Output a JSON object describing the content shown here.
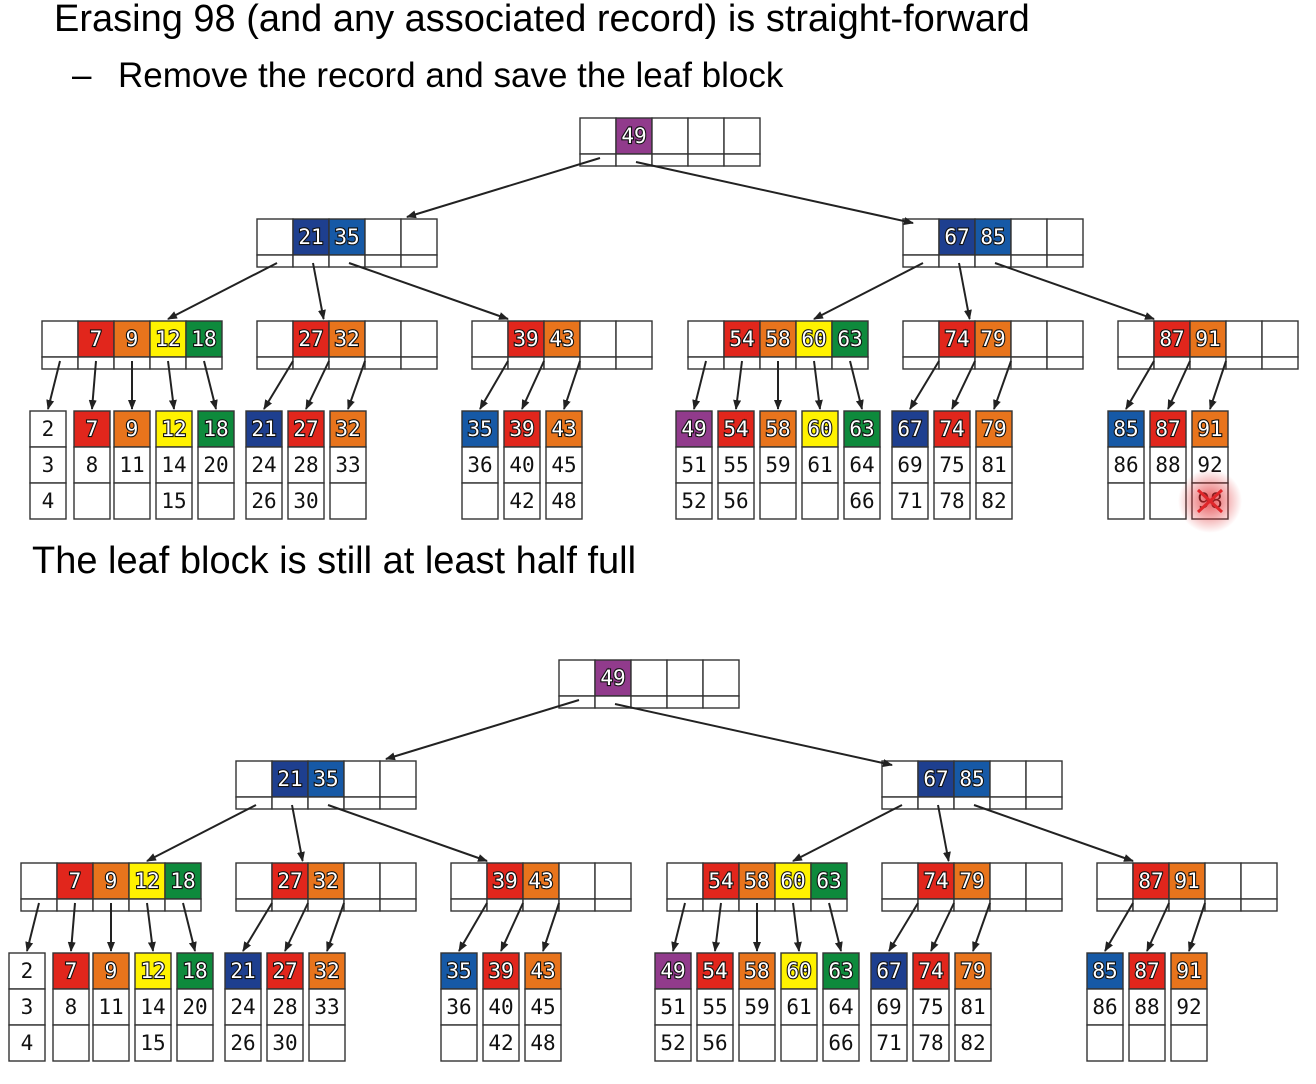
{
  "title": "Erasing 98 (and any associated record) is straight-forward",
  "bullet": {
    "dash": "–",
    "text": "Remove the record and save the leaf block"
  },
  "caption": "The leaf block is still at least half full",
  "colors": {
    "purple": "#913b8c",
    "navy": "#1e3f8f",
    "blue": "#1659a6",
    "red": "#e1261c",
    "orange": "#e8741c",
    "yellow": "#fff200",
    "green": "#0e8a3c",
    "highlight": "#e0262a"
  },
  "before": {
    "root": [
      {
        "k": "49",
        "c": "purple"
      }
    ],
    "internal": [
      [
        {
          "k": "21",
          "c": "navy"
        },
        {
          "k": "35",
          "c": "blue"
        }
      ],
      [
        {
          "k": "67",
          "c": "navy"
        },
        {
          "k": "85",
          "c": "blue"
        }
      ]
    ],
    "inner_blocks": [
      [
        {
          "k": "7",
          "c": "red"
        },
        {
          "k": "9",
          "c": "orange"
        },
        {
          "k": "12",
          "c": "yellow"
        },
        {
          "k": "18",
          "c": "green"
        }
      ],
      [
        {
          "k": "27",
          "c": "red"
        },
        {
          "k": "32",
          "c": "orange"
        }
      ],
      [
        {
          "k": "39",
          "c": "red"
        },
        {
          "k": "43",
          "c": "orange"
        }
      ],
      [
        {
          "k": "54",
          "c": "red"
        },
        {
          "k": "58",
          "c": "orange"
        },
        {
          "k": "60",
          "c": "yellow"
        },
        {
          "k": "63",
          "c": "green"
        }
      ],
      [
        {
          "k": "74",
          "c": "red"
        },
        {
          "k": "79",
          "c": "orange"
        }
      ],
      [
        {
          "k": "87",
          "c": "red"
        },
        {
          "k": "91",
          "c": "orange"
        }
      ]
    ],
    "leaves": [
      [
        [
          {
            "k": "2"
          },
          {
            "k": "3"
          },
          {
            "k": "4"
          }
        ],
        [
          {
            "k": "7",
            "c": "red"
          },
          {
            "k": "8"
          },
          {
            "k": ""
          }
        ],
        [
          {
            "k": "9",
            "c": "orange"
          },
          {
            "k": "11"
          },
          {
            "k": ""
          }
        ],
        [
          {
            "k": "12",
            "c": "yellow"
          },
          {
            "k": "14"
          },
          {
            "k": "15"
          }
        ],
        [
          {
            "k": "18",
            "c": "green"
          },
          {
            "k": "20"
          },
          {
            "k": ""
          }
        ]
      ],
      [
        [
          {
            "k": "21",
            "c": "navy"
          },
          {
            "k": "24"
          },
          {
            "k": "26"
          }
        ],
        [
          {
            "k": "27",
            "c": "red"
          },
          {
            "k": "28"
          },
          {
            "k": "30"
          }
        ],
        [
          {
            "k": "32",
            "c": "orange"
          },
          {
            "k": "33"
          },
          {
            "k": ""
          }
        ]
      ],
      [
        [
          {
            "k": "35",
            "c": "blue"
          },
          {
            "k": "36"
          },
          {
            "k": ""
          }
        ],
        [
          {
            "k": "39",
            "c": "red"
          },
          {
            "k": "40"
          },
          {
            "k": "42"
          }
        ],
        [
          {
            "k": "43",
            "c": "orange"
          },
          {
            "k": "45"
          },
          {
            "k": "48"
          }
        ]
      ],
      [
        [
          {
            "k": "49",
            "c": "purple"
          },
          {
            "k": "51"
          },
          {
            "k": "52"
          }
        ],
        [
          {
            "k": "54",
            "c": "red"
          },
          {
            "k": "55"
          },
          {
            "k": "56"
          }
        ],
        [
          {
            "k": "58",
            "c": "orange"
          },
          {
            "k": "59"
          },
          {
            "k": ""
          }
        ],
        [
          {
            "k": "60",
            "c": "yellow"
          },
          {
            "k": "61"
          },
          {
            "k": ""
          }
        ],
        [
          {
            "k": "63",
            "c": "green"
          },
          {
            "k": "64"
          },
          {
            "k": "66"
          }
        ]
      ],
      [
        [
          {
            "k": "67",
            "c": "navy"
          },
          {
            "k": "69"
          },
          {
            "k": "71"
          }
        ],
        [
          {
            "k": "74",
            "c": "red"
          },
          {
            "k": "75"
          },
          {
            "k": "78"
          }
        ],
        [
          {
            "k": "79",
            "c": "orange"
          },
          {
            "k": "81"
          },
          {
            "k": "82"
          }
        ]
      ],
      [
        [
          {
            "k": "85",
            "c": "blue"
          },
          {
            "k": "86"
          },
          {
            "k": ""
          }
        ],
        [
          {
            "k": "87",
            "c": "red"
          },
          {
            "k": "88"
          },
          {
            "k": ""
          }
        ],
        [
          {
            "k": "91",
            "c": "orange"
          },
          {
            "k": "92"
          },
          {
            "k": "98",
            "erased": true
          }
        ]
      ]
    ]
  },
  "after": {
    "root": [
      {
        "k": "49",
        "c": "purple"
      }
    ],
    "internal": [
      [
        {
          "k": "21",
          "c": "navy"
        },
        {
          "k": "35",
          "c": "blue"
        }
      ],
      [
        {
          "k": "67",
          "c": "navy"
        },
        {
          "k": "85",
          "c": "blue"
        }
      ]
    ],
    "inner_blocks": [
      [
        {
          "k": "7",
          "c": "red"
        },
        {
          "k": "9",
          "c": "orange"
        },
        {
          "k": "12",
          "c": "yellow"
        },
        {
          "k": "18",
          "c": "green"
        }
      ],
      [
        {
          "k": "27",
          "c": "red"
        },
        {
          "k": "32",
          "c": "orange"
        }
      ],
      [
        {
          "k": "39",
          "c": "red"
        },
        {
          "k": "43",
          "c": "orange"
        }
      ],
      [
        {
          "k": "54",
          "c": "red"
        },
        {
          "k": "58",
          "c": "orange"
        },
        {
          "k": "60",
          "c": "yellow"
        },
        {
          "k": "63",
          "c": "green"
        }
      ],
      [
        {
          "k": "74",
          "c": "red"
        },
        {
          "k": "79",
          "c": "orange"
        }
      ],
      [
        {
          "k": "87",
          "c": "red"
        },
        {
          "k": "91",
          "c": "orange"
        }
      ]
    ],
    "leaves": [
      [
        [
          {
            "k": "2"
          },
          {
            "k": "3"
          },
          {
            "k": "4"
          }
        ],
        [
          {
            "k": "7",
            "c": "red"
          },
          {
            "k": "8"
          },
          {
            "k": ""
          }
        ],
        [
          {
            "k": "9",
            "c": "orange"
          },
          {
            "k": "11"
          },
          {
            "k": ""
          }
        ],
        [
          {
            "k": "12",
            "c": "yellow"
          },
          {
            "k": "14"
          },
          {
            "k": "15"
          }
        ],
        [
          {
            "k": "18",
            "c": "green"
          },
          {
            "k": "20"
          },
          {
            "k": ""
          }
        ]
      ],
      [
        [
          {
            "k": "21",
            "c": "navy"
          },
          {
            "k": "24"
          },
          {
            "k": "26"
          }
        ],
        [
          {
            "k": "27",
            "c": "red"
          },
          {
            "k": "28"
          },
          {
            "k": "30"
          }
        ],
        [
          {
            "k": "32",
            "c": "orange"
          },
          {
            "k": "33"
          },
          {
            "k": ""
          }
        ]
      ],
      [
        [
          {
            "k": "35",
            "c": "blue"
          },
          {
            "k": "36"
          },
          {
            "k": ""
          }
        ],
        [
          {
            "k": "39",
            "c": "red"
          },
          {
            "k": "40"
          },
          {
            "k": "42"
          }
        ],
        [
          {
            "k": "43",
            "c": "orange"
          },
          {
            "k": "45"
          },
          {
            "k": "48"
          }
        ]
      ],
      [
        [
          {
            "k": "49",
            "c": "purple"
          },
          {
            "k": "51"
          },
          {
            "k": "52"
          }
        ],
        [
          {
            "k": "54",
            "c": "red"
          },
          {
            "k": "55"
          },
          {
            "k": "56"
          }
        ],
        [
          {
            "k": "58",
            "c": "orange"
          },
          {
            "k": "59"
          },
          {
            "k": ""
          }
        ],
        [
          {
            "k": "60",
            "c": "yellow"
          },
          {
            "k": "61"
          },
          {
            "k": ""
          }
        ],
        [
          {
            "k": "63",
            "c": "green"
          },
          {
            "k": "64"
          },
          {
            "k": "66"
          }
        ]
      ],
      [
        [
          {
            "k": "67",
            "c": "navy"
          },
          {
            "k": "69"
          },
          {
            "k": "71"
          }
        ],
        [
          {
            "k": "74",
            "c": "red"
          },
          {
            "k": "75"
          },
          {
            "k": "78"
          }
        ],
        [
          {
            "k": "79",
            "c": "orange"
          },
          {
            "k": "81"
          },
          {
            "k": "82"
          }
        ]
      ],
      [
        [
          {
            "k": "85",
            "c": "blue"
          },
          {
            "k": "86"
          },
          {
            "k": ""
          }
        ],
        [
          {
            "k": "87",
            "c": "red"
          },
          {
            "k": "88"
          },
          {
            "k": ""
          }
        ],
        [
          {
            "k": "91",
            "c": "orange"
          },
          {
            "k": "92"
          },
          {
            "k": ""
          }
        ]
      ]
    ]
  }
}
